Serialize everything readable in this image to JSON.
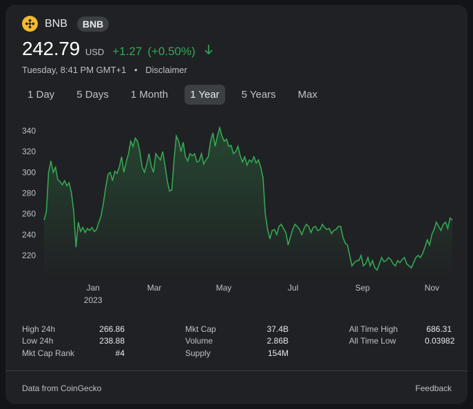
{
  "header": {
    "coin_name": "BNB",
    "ticker": "BNB",
    "icon": "bnb-logo-icon",
    "accent_color": "#f3ba2f"
  },
  "price": {
    "value": "242.79",
    "currency": "USD",
    "change": "+1.27",
    "change_pct": "(+0.50%)",
    "change_color": "#34a853"
  },
  "meta": {
    "timestamp": "Tuesday, 8:41 PM GMT+1",
    "separator": "•",
    "disclaimer": "Disclaimer"
  },
  "tabs": [
    {
      "label": "1 Day"
    },
    {
      "label": "5 Days"
    },
    {
      "label": "1 Month"
    },
    {
      "label": "1 Year",
      "active": true
    },
    {
      "label": "5 Years"
    },
    {
      "label": "Max"
    }
  ],
  "chart_data": {
    "type": "area",
    "y_ticks": [
      340,
      320,
      300,
      280,
      260,
      240,
      220
    ],
    "ylim": [
      200,
      350
    ],
    "x_ticks": [
      {
        "label": "Jan",
        "sub": "2023",
        "t": 0.12
      },
      {
        "label": "Mar",
        "sub": "",
        "t": 0.27
      },
      {
        "label": "May",
        "sub": "",
        "t": 0.44
      },
      {
        "label": "Jul",
        "sub": "",
        "t": 0.61
      },
      {
        "label": "Sep",
        "sub": "",
        "t": 0.78
      },
      {
        "label": "Nov",
        "sub": "",
        "t": 0.95
      }
    ],
    "line_color": "#34a853",
    "values": [
      254,
      262,
      300,
      311,
      300,
      305,
      293,
      291,
      288,
      292,
      287,
      290,
      280,
      262,
      228,
      252,
      243,
      247,
      242,
      246,
      244,
      247,
      243,
      245,
      252,
      258,
      270,
      285,
      298,
      300,
      292,
      301,
      299,
      305,
      315,
      300,
      310,
      318,
      330,
      325,
      333,
      330,
      320,
      305,
      300,
      308,
      318,
      306,
      300,
      318,
      315,
      312,
      320,
      307,
      292,
      282,
      283,
      312,
      335,
      330,
      320,
      329,
      315,
      311,
      318,
      316,
      318,
      310,
      311,
      318,
      308,
      312,
      315,
      330,
      338,
      325,
      335,
      343,
      335,
      330,
      332,
      325,
      326,
      318,
      320,
      325,
      316,
      310,
      315,
      307,
      312,
      310,
      315,
      309,
      312,
      305,
      295,
      260,
      245,
      236,
      244,
      245,
      240,
      248,
      250,
      246,
      242,
      230,
      238,
      245,
      250,
      248,
      245,
      240,
      246,
      250,
      248,
      242,
      247,
      248,
      244,
      245,
      250,
      247,
      245,
      246,
      241,
      244,
      245,
      248,
      248,
      238,
      232,
      230,
      220,
      210,
      213,
      215,
      215,
      220,
      210,
      212,
      218,
      210,
      215,
      208,
      206,
      212,
      218,
      214,
      215,
      218,
      216,
      212,
      210,
      215,
      213,
      216,
      218,
      212,
      210,
      208,
      213,
      218,
      220,
      218,
      222,
      228,
      235,
      230,
      240,
      245,
      252,
      248,
      244,
      250,
      252,
      246,
      256,
      254
    ]
  },
  "stats": {
    "rows": [
      {
        "l1": "High 24h",
        "v1": "266.86",
        "l2": "Mkt Cap",
        "v2": "37.4B",
        "l3": "All Time High",
        "v3": "686.31"
      },
      {
        "l1": "Low 24h",
        "v1": "238.88",
        "l2": "Volume",
        "v2": "2.86B",
        "l3": "All Time Low",
        "v3": "0.03982"
      },
      {
        "l1": "Mkt Cap Rank",
        "v1": "#4",
        "l2": "Supply",
        "v2": "154M",
        "l3": "",
        "v3": ""
      }
    ]
  },
  "footer": {
    "source": "Data from CoinGecko",
    "feedback": "Feedback"
  }
}
